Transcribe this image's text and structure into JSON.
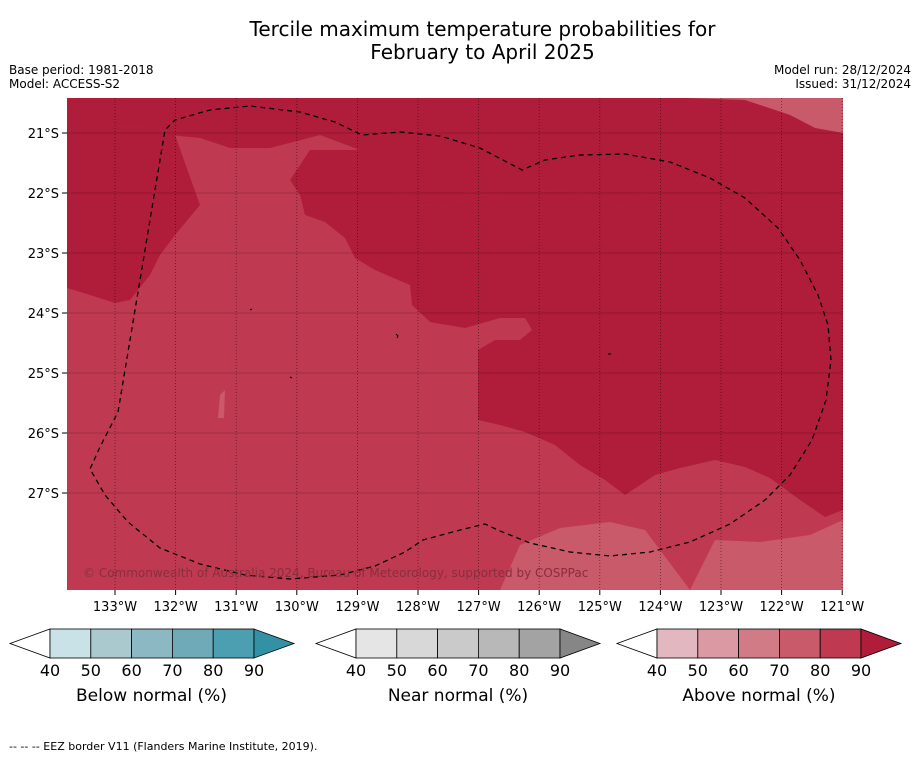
{
  "title_line1": "Tercile maximum temperature probabilities for",
  "title_line2": "February to April 2025",
  "base_period": "Base period: 1981-2018",
  "model": "Model: ACCESS-S2",
  "model_run": "Model run: 28/12/2024",
  "issued": "Issued: 31/12/2024",
  "copyright": "© Commonwealth of Australia 2024, Bureau of Meteorology, supported by COSPPac",
  "footnote": "-- -- -- EEZ border V11 (Flanders Marine Institute, 2019).",
  "latitude_labels": [
    "21°S",
    "22°S",
    "23°S",
    "24°S",
    "25°S",
    "26°S",
    "27°S"
  ],
  "longitude_labels": [
    "133°W",
    "132°W",
    "131°W",
    "130°W",
    "129°W",
    "128°W",
    "127°W",
    "126°W",
    "125°W",
    "124°W",
    "123°W",
    "122°W",
    "121°W"
  ],
  "legend": {
    "below": {
      "label": "Below normal (%)",
      "ticks": [
        "40",
        "50",
        "60",
        "70",
        "80",
        "90"
      ],
      "colors": [
        "#c9e2e7",
        "#a9c9cf",
        "#8cb8c3",
        "#6eaab7",
        "#4c9fb1",
        "#3391a6"
      ]
    },
    "near": {
      "label": "Near normal (%)",
      "ticks": [
        "40",
        "50",
        "60",
        "70",
        "80",
        "90"
      ],
      "colors": [
        "#e5e5e5",
        "#d8d8d8",
        "#cacaca",
        "#b8b8b8",
        "#a3a3a3",
        "#868686"
      ]
    },
    "above": {
      "label": "Above normal (%)",
      "ticks": [
        "40",
        "50",
        "60",
        "70",
        "80",
        "90"
      ],
      "colors": [
        "#e2b7bf",
        "#d99aa4",
        "#d17b87",
        "#c95a6a",
        "#bf3a50",
        "#b01d3a"
      ]
    }
  },
  "colors": {
    "above_70_80": "#bf3a50",
    "above_80_90": "#b01d3a",
    "above_60_70": "#c95a6a"
  }
}
